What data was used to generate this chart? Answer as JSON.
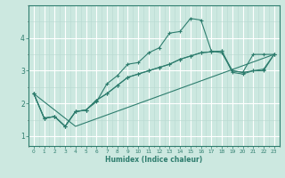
{
  "xlabel": "Humidex (Indice chaleur)",
  "ylabel": "",
  "bg_color": "#cce8e0",
  "line_color": "#2e7d6e",
  "grid_color_major": "#ffffff",
  "grid_color_minor": "#b8d8d0",
  "xlim": [
    -0.5,
    23.5
  ],
  "ylim": [
    0.7,
    5.0
  ],
  "yticks": [
    1,
    2,
    3,
    4
  ],
  "xticks": [
    0,
    1,
    2,
    3,
    4,
    5,
    6,
    7,
    8,
    9,
    10,
    11,
    12,
    13,
    14,
    15,
    16,
    17,
    18,
    19,
    20,
    21,
    22,
    23
  ],
  "series": [
    {
      "x": [
        0,
        1,
        2,
        3,
        4,
        5,
        6,
        7,
        8,
        9,
        10,
        11,
        12,
        13,
        14,
        15,
        16,
        17,
        18,
        19,
        20,
        21,
        22,
        23
      ],
      "y": [
        2.3,
        1.55,
        1.6,
        1.3,
        1.75,
        1.8,
        2.05,
        2.6,
        2.85,
        3.2,
        3.25,
        3.55,
        3.7,
        4.15,
        4.2,
        4.6,
        4.55,
        3.6,
        3.55,
        3.0,
        2.95,
        3.5,
        3.5,
        3.5
      ],
      "markers": true
    },
    {
      "x": [
        0,
        1,
        2,
        3,
        4,
        5,
        6,
        7,
        8,
        9,
        10,
        11,
        12,
        13,
        14,
        15,
        16,
        17,
        18,
        19,
        20,
        21,
        22,
        23
      ],
      "y": [
        2.3,
        1.55,
        1.6,
        1.3,
        1.75,
        1.8,
        2.1,
        2.3,
        2.55,
        2.8,
        2.9,
        3.0,
        3.1,
        3.2,
        3.35,
        3.45,
        3.55,
        3.58,
        3.6,
        3.0,
        2.95,
        3.0,
        3.0,
        3.5
      ],
      "markers": true
    },
    {
      "x": [
        0,
        1,
        2,
        3,
        4,
        5,
        6,
        7,
        8,
        9,
        10,
        11,
        12,
        13,
        14,
        15,
        16,
        17,
        18,
        19,
        20,
        21,
        22,
        23
      ],
      "y": [
        2.3,
        1.55,
        1.6,
        1.3,
        1.75,
        1.8,
        2.1,
        2.3,
        2.55,
        2.8,
        2.9,
        3.0,
        3.1,
        3.2,
        3.35,
        3.45,
        3.55,
        3.58,
        3.6,
        2.95,
        2.9,
        3.0,
        3.05,
        3.5
      ],
      "markers": true
    },
    {
      "x": [
        0,
        4,
        23
      ],
      "y": [
        2.3,
        1.3,
        3.5
      ],
      "markers": false
    }
  ]
}
